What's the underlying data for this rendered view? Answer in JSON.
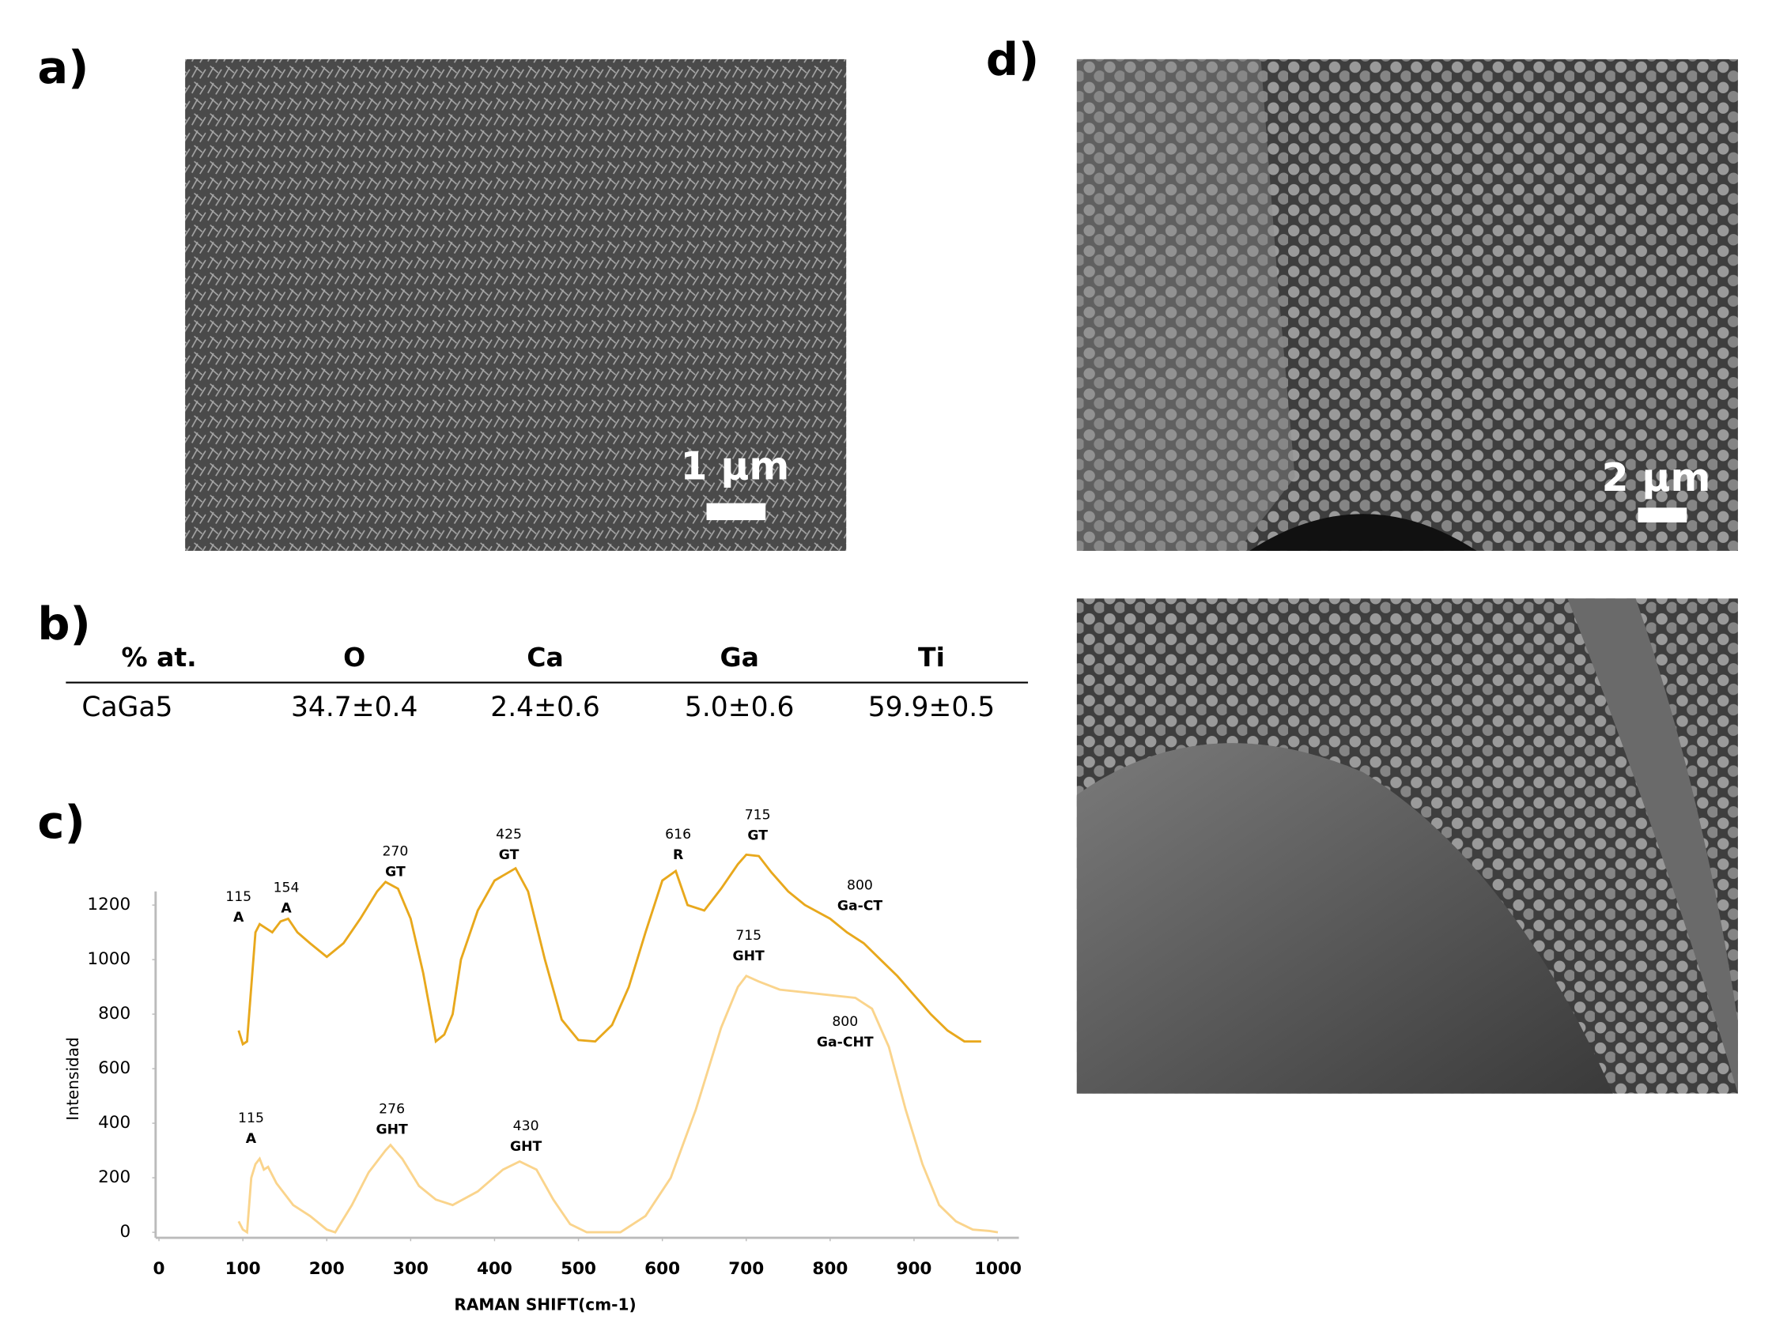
{
  "panels": {
    "a": "a)",
    "b": "b)",
    "c": "c)",
    "d": "d)"
  },
  "scale_bars": [
    "1 µm",
    "2 µm"
  ],
  "table": {
    "header": [
      "% at.",
      "O",
      "Ca",
      "Ga",
      "Ti"
    ],
    "rows": [
      [
        "CaGa5",
        "34.7±0.4",
        "2.4±0.6",
        "5.0±0.6",
        "59.9±0.5"
      ]
    ]
  },
  "chart_data": {
    "type": "line",
    "x_label": "RAMAN SHIFT(cm-1)",
    "y_label": "Intensidad",
    "xlim": [
      -4,
      1025
    ],
    "ylim": [
      -20,
      1250
    ],
    "xticks": [
      0,
      100,
      200,
      300,
      400,
      500,
      600,
      700,
      800,
      900,
      1000
    ],
    "yticks": [
      0,
      200,
      400,
      600,
      800,
      1000,
      1200
    ],
    "series": [
      {
        "color": "#e8a81c",
        "x": [
          95,
          100,
          105,
          115,
          120,
          125,
          135,
          145,
          154,
          165,
          180,
          200,
          220,
          240,
          260,
          270,
          285,
          300,
          315,
          330,
          340,
          350,
          360,
          380,
          400,
          425,
          440,
          460,
          480,
          500,
          520,
          540,
          560,
          580,
          600,
          616,
          630,
          650,
          670,
          690,
          700,
          715,
          730,
          750,
          770,
          800,
          820,
          840,
          860,
          880,
          900,
          920,
          940,
          960,
          980
        ],
        "values": [
          740,
          690,
          700,
          1100,
          1130,
          1120,
          1100,
          1140,
          1150,
          1100,
          1060,
          1010,
          1060,
          1150,
          1250,
          1285,
          1260,
          1150,
          950,
          700,
          725,
          800,
          1000,
          1180,
          1290,
          1335,
          1250,
          1000,
          780,
          705,
          700,
          760,
          900,
          1100,
          1290,
          1325,
          1200,
          1180,
          1260,
          1350,
          1385,
          1380,
          1320,
          1250,
          1200,
          1150,
          1100,
          1060,
          1000,
          940,
          870,
          800,
          740,
          700,
          700
        ]
      },
      {
        "color": "#fad48c",
        "x": [
          95,
          100,
          105,
          110,
          115,
          120,
          125,
          130,
          140,
          160,
          180,
          200,
          210,
          230,
          250,
          270,
          276,
          290,
          310,
          330,
          350,
          380,
          410,
          430,
          450,
          470,
          490,
          510,
          530,
          550,
          580,
          610,
          640,
          670,
          690,
          700,
          715,
          740,
          770,
          800,
          830,
          850,
          870,
          890,
          910,
          930,
          950,
          970,
          990,
          1000
        ],
        "values": [
          40,
          10,
          0,
          200,
          250,
          270,
          230,
          240,
          180,
          100,
          60,
          10,
          0,
          100,
          220,
          300,
          320,
          270,
          170,
          120,
          100,
          150,
          230,
          260,
          230,
          120,
          30,
          0,
          0,
          0,
          60,
          200,
          450,
          750,
          900,
          940,
          920,
          890,
          880,
          870,
          860,
          820,
          680,
          450,
          250,
          100,
          40,
          10,
          5,
          0
        ]
      }
    ],
    "annotations": [
      {
        "number": "115",
        "label": "A"
      },
      {
        "number": "154",
        "label": "A"
      },
      {
        "number": "270",
        "label": "GT"
      },
      {
        "number": "425",
        "label": "GT"
      },
      {
        "number": "616",
        "label": "R"
      },
      {
        "number": "715",
        "label": "GT"
      },
      {
        "number": "800",
        "label": "Ga-CT"
      },
      {
        "number": "115",
        "label": "A"
      },
      {
        "number": "276",
        "label": "GHT"
      },
      {
        "number": "430",
        "label": "GHT"
      },
      {
        "number": "715",
        "label": "GHT"
      },
      {
        "number": "800",
        "label": "Ga-CHT"
      }
    ]
  }
}
